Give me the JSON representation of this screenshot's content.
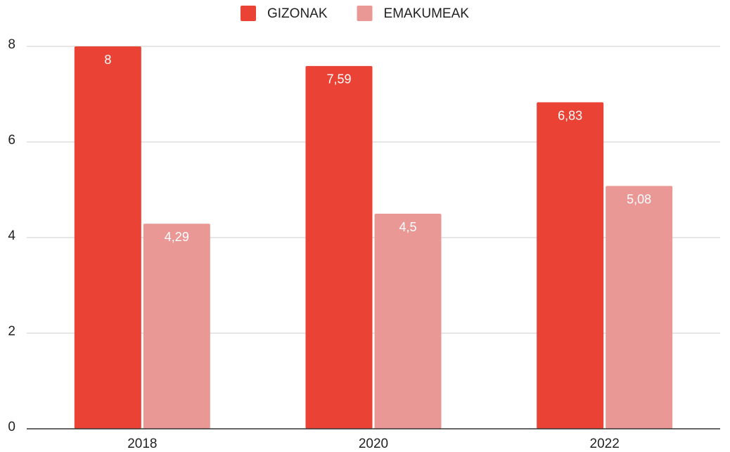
{
  "chart_data": {
    "type": "bar",
    "categories": [
      "2018",
      "2020",
      "2022"
    ],
    "series": [
      {
        "name": "GIZONAK",
        "color": "#ea4335",
        "values": [
          8,
          7.59,
          6.83
        ],
        "value_labels": [
          "8",
          "7,59",
          "6,83"
        ]
      },
      {
        "name": "EMAKUMEAK",
        "color": "#e99896",
        "values": [
          4.29,
          4.5,
          5.08
        ],
        "value_labels": [
          "4,29",
          "4,5",
          "5,08"
        ]
      }
    ],
    "ylim": [
      0,
      8
    ],
    "yticks": [
      0,
      2,
      4,
      6,
      8
    ],
    "grid": true,
    "legend": "top"
  }
}
